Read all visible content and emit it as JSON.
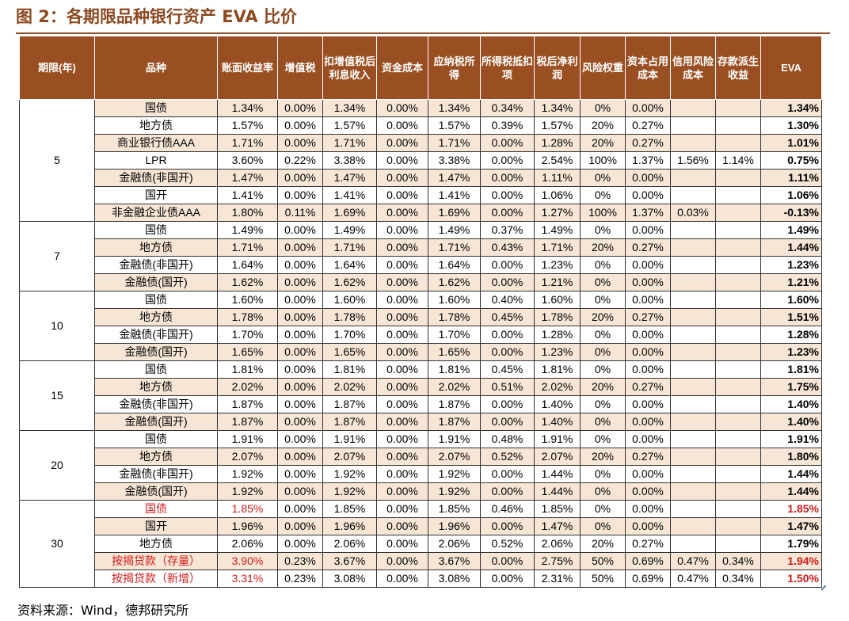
{
  "title": "图 2：各期限品种银行资产 EVA 比价",
  "source": "资料来源：Wind，德邦研究所",
  "colors": {
    "header_bg": "#9a4f22",
    "title": "#8c4a21",
    "row_shade": "#f7e6d5",
    "highlight": "#d11a1a"
  },
  "headers": [
    "期限(年)",
    "品种",
    "账面收益率",
    "增值税",
    "扣增值税后利息收入",
    "资金成本",
    "应纳税所得",
    "所得税抵扣项",
    "税后净利润",
    "风险权重",
    "资本占用成本",
    "信用风险成本",
    "存款派生收益",
    "EVA"
  ],
  "rows": [
    {
      "term": "5",
      "name": "国债",
      "v": [
        "1.34%",
        "0.00%",
        "1.34%",
        "0.00%",
        "1.34%",
        "0.34%",
        "1.34%",
        "0%",
        "0.00%",
        "",
        "",
        "1.34%"
      ]
    },
    {
      "term": "",
      "name": "地方债",
      "v": [
        "1.57%",
        "0.00%",
        "1.57%",
        "0.00%",
        "1.57%",
        "0.39%",
        "1.57%",
        "20%",
        "0.27%",
        "",
        "",
        "1.30%"
      ]
    },
    {
      "term": "",
      "name": "商业银行债AAA",
      "v": [
        "1.71%",
        "0.00%",
        "1.71%",
        "0.00%",
        "1.71%",
        "0.00%",
        "1.28%",
        "20%",
        "0.27%",
        "",
        "",
        "1.01%"
      ]
    },
    {
      "term": "",
      "name": "LPR",
      "v": [
        "3.60%",
        "0.22%",
        "3.38%",
        "0.00%",
        "3.38%",
        "0.00%",
        "2.54%",
        "100%",
        "1.37%",
        "1.56%",
        "1.14%",
        "0.75%"
      ]
    },
    {
      "term": "",
      "name": "金融债(非国开)",
      "v": [
        "1.47%",
        "0.00%",
        "1.47%",
        "0.00%",
        "1.47%",
        "0.00%",
        "1.11%",
        "0%",
        "0.00%",
        "",
        "",
        "1.11%"
      ]
    },
    {
      "term": "",
      "name": "国开",
      "v": [
        "1.41%",
        "0.00%",
        "1.41%",
        "0.00%",
        "1.41%",
        "0.00%",
        "1.06%",
        "0%",
        "0.00%",
        "",
        "",
        "1.06%"
      ]
    },
    {
      "term": "",
      "name": "非金融企业债AAA",
      "v": [
        "1.80%",
        "0.11%",
        "1.69%",
        "0.00%",
        "1.69%",
        "0.00%",
        "1.27%",
        "100%",
        "1.37%",
        "0.03%",
        "",
        "-0.13%"
      ]
    },
    {
      "term": "7",
      "name": "国债",
      "v": [
        "1.49%",
        "0.00%",
        "1.49%",
        "0.00%",
        "1.49%",
        "0.37%",
        "1.49%",
        "0%",
        "0.00%",
        "",
        "",
        "1.49%"
      ]
    },
    {
      "term": "",
      "name": "地方债",
      "v": [
        "1.71%",
        "0.00%",
        "1.71%",
        "0.00%",
        "1.71%",
        "0.43%",
        "1.71%",
        "20%",
        "0.27%",
        "",
        "",
        "1.44%"
      ]
    },
    {
      "term": "",
      "name": "金融债(非国开)",
      "v": [
        "1.64%",
        "0.00%",
        "1.64%",
        "0.00%",
        "1.64%",
        "0.00%",
        "1.23%",
        "0%",
        "0.00%",
        "",
        "",
        "1.23%"
      ]
    },
    {
      "term": "",
      "name": "金融债(国开)",
      "v": [
        "1.62%",
        "0.00%",
        "1.62%",
        "0.00%",
        "1.62%",
        "0.00%",
        "1.21%",
        "0%",
        "0.00%",
        "",
        "",
        "1.21%"
      ]
    },
    {
      "term": "10",
      "name": "国债",
      "v": [
        "1.60%",
        "0.00%",
        "1.60%",
        "0.00%",
        "1.60%",
        "0.40%",
        "1.60%",
        "0%",
        "0.00%",
        "",
        "",
        "1.60%"
      ]
    },
    {
      "term": "",
      "name": "地方债",
      "v": [
        "1.78%",
        "0.00%",
        "1.78%",
        "0.00%",
        "1.78%",
        "0.45%",
        "1.78%",
        "20%",
        "0.27%",
        "",
        "",
        "1.51%"
      ]
    },
    {
      "term": "",
      "name": "金融债(非国开)",
      "v": [
        "1.70%",
        "0.00%",
        "1.70%",
        "0.00%",
        "1.70%",
        "0.00%",
        "1.28%",
        "0%",
        "0.00%",
        "",
        "",
        "1.28%"
      ]
    },
    {
      "term": "",
      "name": "金融债(国开)",
      "v": [
        "1.65%",
        "0.00%",
        "1.65%",
        "0.00%",
        "1.65%",
        "0.00%",
        "1.23%",
        "0%",
        "0.00%",
        "",
        "",
        "1.23%"
      ]
    },
    {
      "term": "15",
      "name": "国债",
      "v": [
        "1.81%",
        "0.00%",
        "1.81%",
        "0.00%",
        "1.81%",
        "0.45%",
        "1.81%",
        "0%",
        "0.00%",
        "",
        "",
        "1.81%"
      ]
    },
    {
      "term": "",
      "name": "地方债",
      "v": [
        "2.02%",
        "0.00%",
        "2.02%",
        "0.00%",
        "2.02%",
        "0.51%",
        "2.02%",
        "20%",
        "0.27%",
        "",
        "",
        "1.75%"
      ]
    },
    {
      "term": "",
      "name": "金融债(非国开)",
      "v": [
        "1.87%",
        "0.00%",
        "1.87%",
        "0.00%",
        "1.87%",
        "0.00%",
        "1.40%",
        "0%",
        "0.00%",
        "",
        "",
        "1.40%"
      ]
    },
    {
      "term": "",
      "name": "金融债(国开)",
      "v": [
        "1.87%",
        "0.00%",
        "1.87%",
        "0.00%",
        "1.87%",
        "0.00%",
        "1.40%",
        "0%",
        "0.00%",
        "",
        "",
        "1.40%"
      ]
    },
    {
      "term": "20",
      "name": "国债",
      "v": [
        "1.91%",
        "0.00%",
        "1.91%",
        "0.00%",
        "1.91%",
        "0.48%",
        "1.91%",
        "0%",
        "0.00%",
        "",
        "",
        "1.91%"
      ]
    },
    {
      "term": "",
      "name": "地方债",
      "v": [
        "2.07%",
        "0.00%",
        "2.07%",
        "0.00%",
        "2.07%",
        "0.52%",
        "2.07%",
        "20%",
        "0.27%",
        "",
        "",
        "1.80%"
      ]
    },
    {
      "term": "",
      "name": "金融债(非国开)",
      "v": [
        "1.92%",
        "0.00%",
        "1.92%",
        "0.00%",
        "1.92%",
        "0.00%",
        "1.44%",
        "0%",
        "0.00%",
        "",
        "",
        "1.44%"
      ]
    },
    {
      "term": "",
      "name": "金融债(国开)",
      "v": [
        "1.92%",
        "0.00%",
        "1.92%",
        "0.00%",
        "1.92%",
        "0.00%",
        "1.44%",
        "0%",
        "0.00%",
        "",
        "",
        "1.44%"
      ]
    },
    {
      "term": "30",
      "name": "国债",
      "red": true,
      "v": [
        "1.85%",
        "0.00%",
        "1.85%",
        "0.00%",
        "1.85%",
        "0.46%",
        "1.85%",
        "0%",
        "0.00%",
        "",
        "",
        "1.85%"
      ]
    },
    {
      "term": "",
      "name": "国开",
      "v": [
        "1.96%",
        "0.00%",
        "1.96%",
        "0.00%",
        "1.96%",
        "0.00%",
        "1.47%",
        "0%",
        "0.00%",
        "",
        "",
        "1.47%"
      ]
    },
    {
      "term": "",
      "name": "地方债",
      "v": [
        "2.06%",
        "0.00%",
        "2.06%",
        "0.00%",
        "2.06%",
        "0.52%",
        "2.06%",
        "20%",
        "0.27%",
        "",
        "",
        "1.79%"
      ]
    },
    {
      "term": "",
      "name": "按揭贷款（存量）",
      "red": true,
      "v": [
        "3.90%",
        "0.23%",
        "3.67%",
        "0.00%",
        "3.67%",
        "0.00%",
        "2.75%",
        "50%",
        "0.69%",
        "0.47%",
        "0.34%",
        "1.94%"
      ]
    },
    {
      "term": "",
      "name": "按揭贷款（新增）",
      "red": true,
      "v": [
        "3.31%",
        "0.23%",
        "3.08%",
        "0.00%",
        "3.08%",
        "0.00%",
        "2.31%",
        "50%",
        "0.69%",
        "0.47%",
        "0.34%",
        "1.50%"
      ]
    }
  ]
}
